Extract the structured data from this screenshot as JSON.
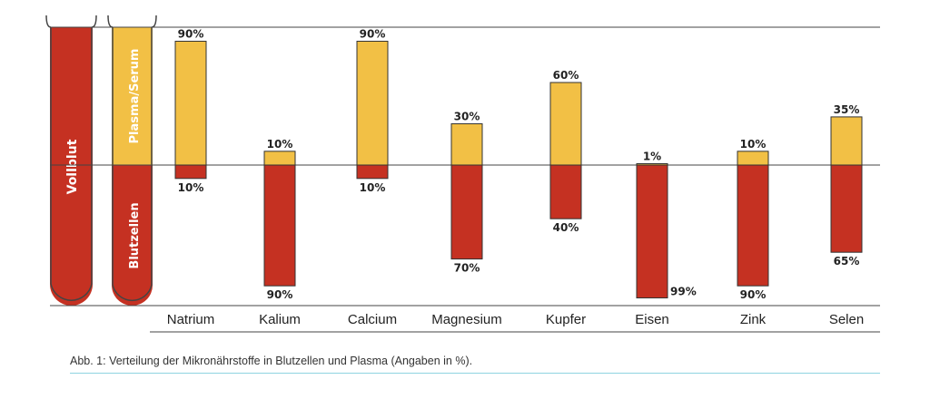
{
  "chart_data": {
    "type": "bar",
    "stacking": "diverging",
    "categories": [
      "Natrium",
      "Kalium",
      "Calcium",
      "Magnesium",
      "Kupfer",
      "Eisen",
      "Zink",
      "Selen"
    ],
    "series": [
      {
        "name": "Plasma/Serum",
        "values": [
          90,
          10,
          90,
          30,
          60,
          1,
          10,
          35
        ],
        "color": "#f2c045"
      },
      {
        "name": "Blutzellen",
        "values": [
          10,
          90,
          10,
          70,
          40,
          99,
          90,
          65
        ],
        "color": "#c53122"
      }
    ],
    "value_labels": {
      "plasma": [
        "90%",
        "10%",
        "90%",
        "30%",
        "60%",
        "1%",
        "10%",
        "35%"
      ],
      "cells": [
        "10%",
        "90%",
        "10%",
        "70%",
        "40%",
        "99%",
        "90%",
        "65%"
      ]
    },
    "ylim": [
      -100,
      100
    ],
    "grid": false
  },
  "legend_tubes": {
    "whole_blood": {
      "label": "Vollblut",
      "color": "#c53122"
    },
    "separated": {
      "top_label": "Plasma/Serum",
      "top_color": "#f2c045",
      "bottom_label": "Blutzellen",
      "bottom_color": "#c53122"
    }
  },
  "caption": "Abb. 1: Verteilung der Mikronährstoffe in Blutzellen und Plasma (Angaben in %)."
}
